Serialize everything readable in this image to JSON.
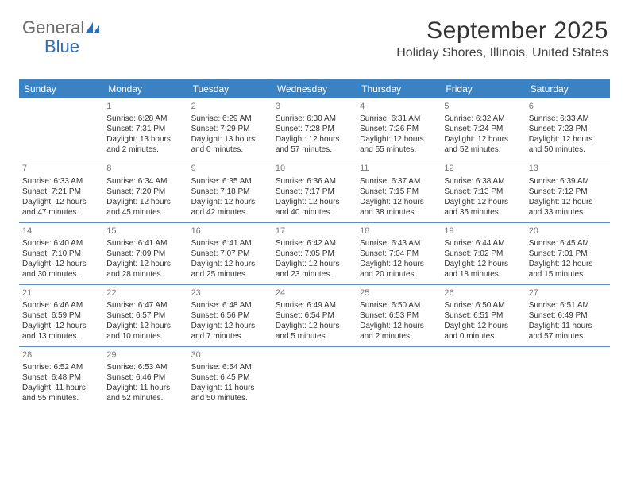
{
  "logo": {
    "line1": "General",
    "line2": "Blue"
  },
  "header": {
    "title": "September 2025",
    "subtitle": "Holiday Shores, Illinois, United States"
  },
  "colors": {
    "header_bg": "#3b82c4",
    "header_fg": "#ffffff",
    "row_border": "#5b8fbf",
    "daynum": "#777777",
    "text": "#333333",
    "logo_gray": "#6b6b6b",
    "logo_blue": "#2e6fb5"
  },
  "typography": {
    "title_fontsize": 30,
    "subtitle_fontsize": 16,
    "weekday_fontsize": 12,
    "cell_fontsize": 10,
    "daynum_fontsize": 11
  },
  "weekdays": [
    "Sunday",
    "Monday",
    "Tuesday",
    "Wednesday",
    "Thursday",
    "Friday",
    "Saturday"
  ],
  "layout": {
    "columns": 7,
    "rows": 5,
    "type": "calendar"
  },
  "weeks": [
    [
      null,
      {
        "n": "1",
        "sunrise": "6:28 AM",
        "sunset": "7:31 PM",
        "daylight": "13 hours and 2 minutes."
      },
      {
        "n": "2",
        "sunrise": "6:29 AM",
        "sunset": "7:29 PM",
        "daylight": "13 hours and 0 minutes."
      },
      {
        "n": "3",
        "sunrise": "6:30 AM",
        "sunset": "7:28 PM",
        "daylight": "12 hours and 57 minutes."
      },
      {
        "n": "4",
        "sunrise": "6:31 AM",
        "sunset": "7:26 PM",
        "daylight": "12 hours and 55 minutes."
      },
      {
        "n": "5",
        "sunrise": "6:32 AM",
        "sunset": "7:24 PM",
        "daylight": "12 hours and 52 minutes."
      },
      {
        "n": "6",
        "sunrise": "6:33 AM",
        "sunset": "7:23 PM",
        "daylight": "12 hours and 50 minutes."
      }
    ],
    [
      {
        "n": "7",
        "sunrise": "6:33 AM",
        "sunset": "7:21 PM",
        "daylight": "12 hours and 47 minutes."
      },
      {
        "n": "8",
        "sunrise": "6:34 AM",
        "sunset": "7:20 PM",
        "daylight": "12 hours and 45 minutes."
      },
      {
        "n": "9",
        "sunrise": "6:35 AM",
        "sunset": "7:18 PM",
        "daylight": "12 hours and 42 minutes."
      },
      {
        "n": "10",
        "sunrise": "6:36 AM",
        "sunset": "7:17 PM",
        "daylight": "12 hours and 40 minutes."
      },
      {
        "n": "11",
        "sunrise": "6:37 AM",
        "sunset": "7:15 PM",
        "daylight": "12 hours and 38 minutes."
      },
      {
        "n": "12",
        "sunrise": "6:38 AM",
        "sunset": "7:13 PM",
        "daylight": "12 hours and 35 minutes."
      },
      {
        "n": "13",
        "sunrise": "6:39 AM",
        "sunset": "7:12 PM",
        "daylight": "12 hours and 33 minutes."
      }
    ],
    [
      {
        "n": "14",
        "sunrise": "6:40 AM",
        "sunset": "7:10 PM",
        "daylight": "12 hours and 30 minutes."
      },
      {
        "n": "15",
        "sunrise": "6:41 AM",
        "sunset": "7:09 PM",
        "daylight": "12 hours and 28 minutes."
      },
      {
        "n": "16",
        "sunrise": "6:41 AM",
        "sunset": "7:07 PM",
        "daylight": "12 hours and 25 minutes."
      },
      {
        "n": "17",
        "sunrise": "6:42 AM",
        "sunset": "7:05 PM",
        "daylight": "12 hours and 23 minutes."
      },
      {
        "n": "18",
        "sunrise": "6:43 AM",
        "sunset": "7:04 PM",
        "daylight": "12 hours and 20 minutes."
      },
      {
        "n": "19",
        "sunrise": "6:44 AM",
        "sunset": "7:02 PM",
        "daylight": "12 hours and 18 minutes."
      },
      {
        "n": "20",
        "sunrise": "6:45 AM",
        "sunset": "7:01 PM",
        "daylight": "12 hours and 15 minutes."
      }
    ],
    [
      {
        "n": "21",
        "sunrise": "6:46 AM",
        "sunset": "6:59 PM",
        "daylight": "12 hours and 13 minutes."
      },
      {
        "n": "22",
        "sunrise": "6:47 AM",
        "sunset": "6:57 PM",
        "daylight": "12 hours and 10 minutes."
      },
      {
        "n": "23",
        "sunrise": "6:48 AM",
        "sunset": "6:56 PM",
        "daylight": "12 hours and 7 minutes."
      },
      {
        "n": "24",
        "sunrise": "6:49 AM",
        "sunset": "6:54 PM",
        "daylight": "12 hours and 5 minutes."
      },
      {
        "n": "25",
        "sunrise": "6:50 AM",
        "sunset": "6:53 PM",
        "daylight": "12 hours and 2 minutes."
      },
      {
        "n": "26",
        "sunrise": "6:50 AM",
        "sunset": "6:51 PM",
        "daylight": "12 hours and 0 minutes."
      },
      {
        "n": "27",
        "sunrise": "6:51 AM",
        "sunset": "6:49 PM",
        "daylight": "11 hours and 57 minutes."
      }
    ],
    [
      {
        "n": "28",
        "sunrise": "6:52 AM",
        "sunset": "6:48 PM",
        "daylight": "11 hours and 55 minutes."
      },
      {
        "n": "29",
        "sunrise": "6:53 AM",
        "sunset": "6:46 PM",
        "daylight": "11 hours and 52 minutes."
      },
      {
        "n": "30",
        "sunrise": "6:54 AM",
        "sunset": "6:45 PM",
        "daylight": "11 hours and 50 minutes."
      },
      null,
      null,
      null,
      null
    ]
  ],
  "labels": {
    "sunrise": "Sunrise:",
    "sunset": "Sunset:",
    "daylight": "Daylight:"
  }
}
